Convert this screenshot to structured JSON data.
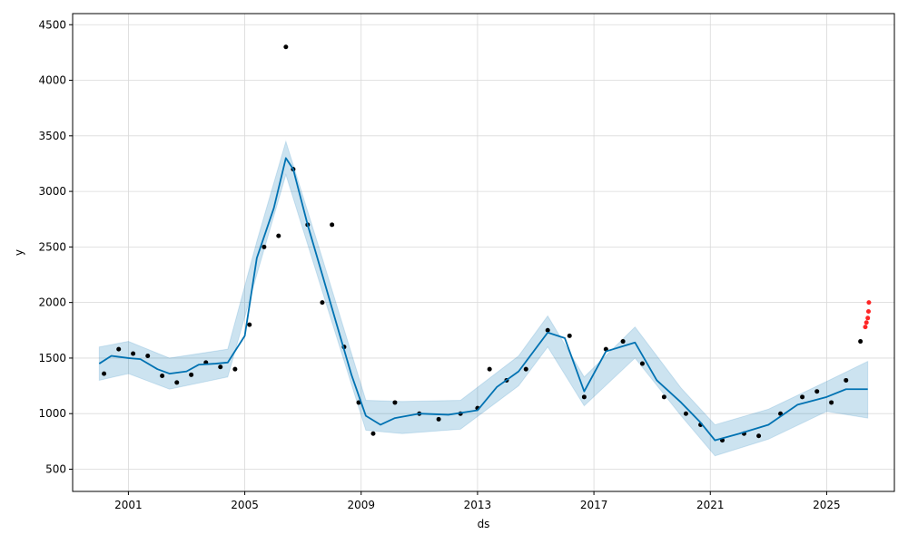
{
  "chart_data": {
    "type": "scatter",
    "title": "",
    "xlabel": "ds",
    "ylabel": "y",
    "xlim": [
      "1999-02-01",
      "2027-05-01"
    ],
    "ylim": [
      300,
      4600
    ],
    "grid": true,
    "x_ticks": [
      "2001",
      "2005",
      "2009",
      "2013",
      "2017",
      "2021",
      "2025"
    ],
    "y_ticks": [
      "500",
      "1000",
      "1500",
      "2000",
      "2500",
      "3000",
      "3500",
      "4000",
      "4500"
    ],
    "colors": {
      "observed": "#000000",
      "forecast_line": "#0072B2",
      "uncertainty_band": "#0072B2",
      "highlight_points": "#ff0000",
      "grid": "#d9d9d9"
    },
    "series": [
      {
        "kind": "observed_points",
        "points": [
          [
            "2000-03-01",
            1360
          ],
          [
            "2000-09-01",
            1580
          ],
          [
            "2001-03-01",
            1540
          ],
          [
            "2001-09-01",
            1520
          ],
          [
            "2002-03-01",
            1340
          ],
          [
            "2002-09-01",
            1280
          ],
          [
            "2003-03-01",
            1350
          ],
          [
            "2003-09-01",
            1460
          ],
          [
            "2004-03-01",
            1420
          ],
          [
            "2004-09-01",
            1400
          ],
          [
            "2005-03-01",
            1800
          ],
          [
            "2005-09-01",
            2500
          ],
          [
            "2006-03-01",
            2600
          ],
          [
            "2006-06-01",
            4300
          ],
          [
            "2006-09-01",
            3200
          ],
          [
            "2007-03-01",
            2700
          ],
          [
            "2007-09-01",
            2000
          ],
          [
            "2008-01-01",
            2700
          ],
          [
            "2008-06-01",
            1600
          ],
          [
            "2008-12-01",
            1100
          ],
          [
            "2009-06-01",
            820
          ],
          [
            "2010-03-01",
            1100
          ],
          [
            "2011-01-01",
            1000
          ],
          [
            "2011-09-01",
            950
          ],
          [
            "2012-06-01",
            1000
          ],
          [
            "2013-01-01",
            1050
          ],
          [
            "2013-06-01",
            1400
          ],
          [
            "2014-01-01",
            1300
          ],
          [
            "2014-09-01",
            1400
          ],
          [
            "2015-06-01",
            1750
          ],
          [
            "2016-03-01",
            1700
          ],
          [
            "2016-09-01",
            1150
          ],
          [
            "2017-06-01",
            1580
          ],
          [
            "2018-01-01",
            1650
          ],
          [
            "2018-09-01",
            1450
          ],
          [
            "2019-06-01",
            1150
          ],
          [
            "2020-03-01",
            1000
          ],
          [
            "2020-09-01",
            900
          ],
          [
            "2021-06-01",
            760
          ],
          [
            "2022-03-01",
            820
          ],
          [
            "2022-09-01",
            800
          ],
          [
            "2023-06-01",
            1000
          ],
          [
            "2024-03-01",
            1150
          ],
          [
            "2024-09-01",
            1200
          ],
          [
            "2025-03-01",
            1100
          ],
          [
            "2025-09-01",
            1300
          ],
          [
            "2026-03-01",
            1650
          ]
        ]
      },
      {
        "kind": "highlight_points",
        "points": [
          [
            "2026-05-01",
            1780
          ],
          [
            "2026-05-15",
            1820
          ],
          [
            "2026-06-01",
            1860
          ],
          [
            "2026-06-10",
            1920
          ],
          [
            "2026-06-15",
            2000
          ]
        ]
      },
      {
        "kind": "forecast_line",
        "points": [
          [
            "2000-01-01",
            1450
          ],
          [
            "2000-06-01",
            1520
          ],
          [
            "2001-01-01",
            1500
          ],
          [
            "2001-06-01",
            1490
          ],
          [
            "2002-01-01",
            1400
          ],
          [
            "2002-06-01",
            1360
          ],
          [
            "2003-01-01",
            1380
          ],
          [
            "2003-06-01",
            1440
          ],
          [
            "2004-01-01",
            1450
          ],
          [
            "2004-06-01",
            1460
          ],
          [
            "2005-01-01",
            1700
          ],
          [
            "2005-06-01",
            2400
          ],
          [
            "2006-01-01",
            2850
          ],
          [
            "2006-06-01",
            3300
          ],
          [
            "2006-09-01",
            3200
          ],
          [
            "2007-03-01",
            2700
          ],
          [
            "2007-09-01",
            2250
          ],
          [
            "2008-03-01",
            1800
          ],
          [
            "2008-09-01",
            1350
          ],
          [
            "2009-03-01",
            980
          ],
          [
            "2009-09-01",
            900
          ],
          [
            "2010-03-01",
            960
          ],
          [
            "2011-01-01",
            1000
          ],
          [
            "2012-01-01",
            990
          ],
          [
            "2013-01-01",
            1030
          ],
          [
            "2013-09-01",
            1240
          ],
          [
            "2014-06-01",
            1380
          ],
          [
            "2015-06-01",
            1730
          ],
          [
            "2016-01-01",
            1680
          ],
          [
            "2016-09-01",
            1200
          ],
          [
            "2017-06-01",
            1560
          ],
          [
            "2018-06-01",
            1640
          ],
          [
            "2019-03-01",
            1300
          ],
          [
            "2020-01-01",
            1100
          ],
          [
            "2020-09-01",
            920
          ],
          [
            "2021-03-01",
            760
          ],
          [
            "2022-01-01",
            820
          ],
          [
            "2023-01-01",
            900
          ],
          [
            "2024-01-01",
            1080
          ],
          [
            "2025-01-01",
            1150
          ],
          [
            "2025-09-01",
            1220
          ],
          [
            "2026-06-01",
            1220
          ]
        ]
      },
      {
        "kind": "uncertainty_band",
        "points": [
          [
            "2000-01-01",
            1300,
            1600
          ],
          [
            "2001-01-01",
            1360,
            1650
          ],
          [
            "2002-06-01",
            1220,
            1500
          ],
          [
            "2004-06-01",
            1330,
            1580
          ],
          [
            "2005-06-01",
            2250,
            2550
          ],
          [
            "2006-06-01",
            3150,
            3450
          ],
          [
            "2007-09-01",
            2100,
            2400
          ],
          [
            "2009-03-01",
            850,
            1120
          ],
          [
            "2010-06-01",
            820,
            1110
          ],
          [
            "2012-06-01",
            860,
            1120
          ],
          [
            "2014-06-01",
            1250,
            1520
          ],
          [
            "2015-06-01",
            1600,
            1880
          ],
          [
            "2016-09-01",
            1070,
            1330
          ],
          [
            "2018-06-01",
            1500,
            1780
          ],
          [
            "2020-01-01",
            980,
            1230
          ],
          [
            "2021-03-01",
            620,
            900
          ],
          [
            "2023-01-01",
            770,
            1040
          ],
          [
            "2025-01-01",
            1020,
            1290
          ],
          [
            "2026-06-01",
            960,
            1470
          ]
        ]
      }
    ]
  }
}
